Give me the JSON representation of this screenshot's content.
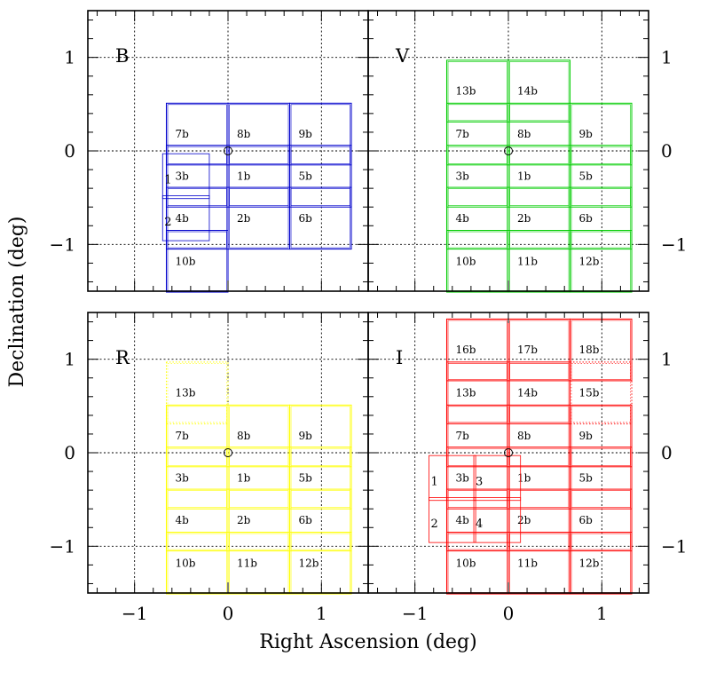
{
  "chart_data": {
    "type": "scatter",
    "description_free": true,
    "xlabel": "Right Ascension (deg)",
    "ylabel": "Declination (deg)",
    "xlim": [
      -1.5,
      1.5
    ],
    "ylim": [
      -1.5,
      1.5
    ],
    "xticks": [
      -1,
      0,
      1
    ],
    "yticks": [
      -1,
      0,
      1
    ],
    "xtick_labels": [
      "−1",
      "0",
      "1"
    ],
    "ytick_labels": [
      "−1",
      "0",
      "1"
    ],
    "grid": true,
    "field_size_deg": 0.66,
    "panels": [
      {
        "band": "B",
        "color": "#0000cc",
        "center_marker": [
          0,
          0
        ],
        "fields": [
          {
            "label": "7b",
            "ra": -0.33,
            "dec": 0.18
          },
          {
            "label": "8b",
            "ra": 0.33,
            "dec": 0.18
          },
          {
            "label": "9b",
            "ra": 0.99,
            "dec": 0.18
          },
          {
            "label": "3b",
            "ra": -0.33,
            "dec": -0.27
          },
          {
            "label": "1b",
            "ra": 0.33,
            "dec": -0.27
          },
          {
            "label": "5b",
            "ra": 0.99,
            "dec": -0.27
          },
          {
            "label": "4b",
            "ra": -0.33,
            "dec": -0.72
          },
          {
            "label": "2b",
            "ra": 0.33,
            "dec": -0.72
          },
          {
            "label": "6b",
            "ra": 0.99,
            "dec": -0.72
          },
          {
            "label": "10b",
            "ra": -0.33,
            "dec": -1.18
          }
        ],
        "extra_fields": [
          {
            "label": "1",
            "ra": -0.45,
            "dec": -0.27
          },
          {
            "label": "2",
            "ra": -0.45,
            "dec": -0.72
          }
        ]
      },
      {
        "band": "V",
        "color": "#00cc00",
        "center_marker": [
          0,
          0
        ],
        "fields": [
          {
            "label": "13b",
            "ra": -0.33,
            "dec": 0.64
          },
          {
            "label": "14b",
            "ra": 0.33,
            "dec": 0.64
          },
          {
            "label": "7b",
            "ra": -0.33,
            "dec": 0.18
          },
          {
            "label": "8b",
            "ra": 0.33,
            "dec": 0.18
          },
          {
            "label": "9b",
            "ra": 0.99,
            "dec": 0.18
          },
          {
            "label": "3b",
            "ra": -0.33,
            "dec": -0.27
          },
          {
            "label": "1b",
            "ra": 0.33,
            "dec": -0.27
          },
          {
            "label": "5b",
            "ra": 0.99,
            "dec": -0.27
          },
          {
            "label": "4b",
            "ra": -0.33,
            "dec": -0.72
          },
          {
            "label": "2b",
            "ra": 0.33,
            "dec": -0.72
          },
          {
            "label": "6b",
            "ra": 0.99,
            "dec": -0.72
          },
          {
            "label": "10b",
            "ra": -0.33,
            "dec": -1.18
          },
          {
            "label": "11b",
            "ra": 0.33,
            "dec": -1.18
          },
          {
            "label": "12b",
            "ra": 0.99,
            "dec": -1.18
          }
        ],
        "extra_fields": []
      },
      {
        "band": "R",
        "color": "#ffff00",
        "center_marker": [
          0,
          0
        ],
        "fields": [
          {
            "label": "13b",
            "ra": -0.33,
            "dec": 0.64,
            "dotted": true
          },
          {
            "label": "7b",
            "ra": -0.33,
            "dec": 0.18
          },
          {
            "label": "8b",
            "ra": 0.33,
            "dec": 0.18
          },
          {
            "label": "9b",
            "ra": 0.99,
            "dec": 0.18
          },
          {
            "label": "3b",
            "ra": -0.33,
            "dec": -0.27
          },
          {
            "label": "1b",
            "ra": 0.33,
            "dec": -0.27
          },
          {
            "label": "5b",
            "ra": 0.99,
            "dec": -0.27
          },
          {
            "label": "4b",
            "ra": -0.33,
            "dec": -0.72
          },
          {
            "label": "2b",
            "ra": 0.33,
            "dec": -0.72
          },
          {
            "label": "6b",
            "ra": 0.99,
            "dec": -0.72
          },
          {
            "label": "10b",
            "ra": -0.33,
            "dec": -1.18
          },
          {
            "label": "11b",
            "ra": 0.33,
            "dec": -1.18
          },
          {
            "label": "12b",
            "ra": 0.99,
            "dec": -1.18
          }
        ],
        "extra_fields": []
      },
      {
        "band": "I",
        "color": "#ff0000",
        "center_marker": [
          0,
          0
        ],
        "fields": [
          {
            "label": "16b",
            "ra": -0.33,
            "dec": 1.1
          },
          {
            "label": "17b",
            "ra": 0.33,
            "dec": 1.1
          },
          {
            "label": "18b",
            "ra": 0.99,
            "dec": 1.1
          },
          {
            "label": "13b",
            "ra": -0.33,
            "dec": 0.64
          },
          {
            "label": "14b",
            "ra": 0.33,
            "dec": 0.64
          },
          {
            "label": "15b",
            "ra": 0.99,
            "dec": 0.64,
            "dotted": true
          },
          {
            "label": "7b",
            "ra": -0.33,
            "dec": 0.18
          },
          {
            "label": "8b",
            "ra": 0.33,
            "dec": 0.18
          },
          {
            "label": "9b",
            "ra": 0.99,
            "dec": 0.18
          },
          {
            "label": "3b",
            "ra": -0.33,
            "dec": -0.27
          },
          {
            "label": "1b",
            "ra": 0.33,
            "dec": -0.27
          },
          {
            "label": "5b",
            "ra": 0.99,
            "dec": -0.27
          },
          {
            "label": "4b",
            "ra": -0.33,
            "dec": -0.72
          },
          {
            "label": "2b",
            "ra": 0.33,
            "dec": -0.72
          },
          {
            "label": "6b",
            "ra": 0.99,
            "dec": -0.72
          },
          {
            "label": "10b",
            "ra": -0.33,
            "dec": -1.18
          },
          {
            "label": "11b",
            "ra": 0.33,
            "dec": -1.18
          },
          {
            "label": "12b",
            "ra": 0.99,
            "dec": -1.18
          }
        ],
        "extra_fields": [
          {
            "label": "1",
            "ra": -0.6,
            "dec": -0.27
          },
          {
            "label": "3",
            "ra": -0.12,
            "dec": -0.27
          },
          {
            "label": "2",
            "ra": -0.6,
            "dec": -0.72
          },
          {
            "label": "4",
            "ra": -0.12,
            "dec": -0.72
          }
        ]
      }
    ]
  }
}
